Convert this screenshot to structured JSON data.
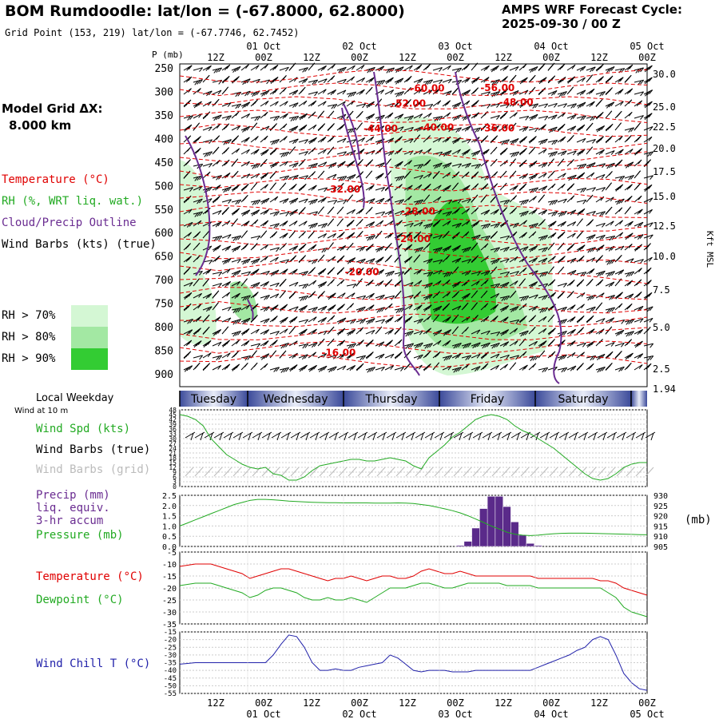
{
  "header": {
    "title": "BOM Rumdoodle:  lat/lon = (-67.8000, 62.8000)",
    "grid_point": "Grid Point (153, 219) lat/lon = (-67.7746, 62.7452)",
    "cycle_label": "AMPS WRF Forecast Cycle:",
    "cycle_value": "2025-09-30 / 00  Z",
    "model_grid_label": "Model Grid ΔX:",
    "model_grid_value": "8.000 km"
  },
  "legend": {
    "temperature": "Temperature (°C)",
    "rh": "RH (%, WRT liq. wat.)",
    "cloud": "Cloud/Precip Outline",
    "wind_barbs": "Wind Barbs (kts) (true)",
    "rh70": "RH > 70%",
    "rh80": "RH > 80%",
    "rh90": "RH > 90%",
    "colors": {
      "temperature": "#e00000",
      "rh": "#22aa22",
      "cloud": "#6a2c91",
      "rh70": "#d4f7d4",
      "rh80": "#a3e8a3",
      "rh90": "#33cc33"
    }
  },
  "time_axis": {
    "hours": [
      "12Z",
      "00Z",
      "12Z",
      "00Z",
      "12Z",
      "00Z",
      "12Z",
      "00Z",
      "12Z",
      "00Z"
    ],
    "dates": [
      "01 Oct",
      "02 Oct",
      "03 Oct",
      "04 Oct",
      "05 Oct"
    ]
  },
  "weekday_strip": {
    "label": "Local Weekday",
    "days": [
      "Tuesday",
      "Wednesday",
      "Thursday",
      "Friday",
      "Saturday"
    ]
  },
  "wind_note": "Wind at 10 m",
  "panel_labels": {
    "wind_spd": "Wind Spd (kts)",
    "wind_barbs_true": "Wind Barbs (true)",
    "wind_barbs_grid": "Wind Barbs (grid)",
    "precip1": "Precip (mm)",
    "precip2": "liq. equiv.",
    "precip3": "3-hr accum",
    "pressure": "Pressure (mb)",
    "pressure_unit": "(mb)",
    "temp": "Temperature (°C)",
    "dew": "Dewpoint (°C)",
    "windchill": "Wind Chill T (°C)",
    "p_unit": "P (mb)",
    "kft": "Kft MSL"
  },
  "chart_data": [
    {
      "type": "heatmap",
      "y_axis": {
        "label": "P (mb)",
        "ticks": [
          250,
          300,
          350,
          400,
          450,
          500,
          550,
          600,
          650,
          700,
          750,
          800,
          850,
          900
        ]
      },
      "right_axis": {
        "label": "Kft MSL",
        "ticks": [
          "30.0",
          "25.0",
          "22.5",
          "20.0",
          "17.5",
          "15.0",
          "12.5",
          "10.0",
          "7.5",
          "5.0",
          "2.5",
          "1.94"
        ]
      },
      "temperature_contours": [
        {
          "value": "-60.00",
          "t": 0.53,
          "p": 300
        },
        {
          "value": "-56.00",
          "t": 0.68,
          "p": 299
        },
        {
          "value": "-52.00",
          "t": 0.49,
          "p": 332
        },
        {
          "value": "-48.00",
          "t": 0.72,
          "p": 330
        },
        {
          "value": "-44.00",
          "t": 0.43,
          "p": 386
        },
        {
          "value": "-40.00",
          "t": 0.55,
          "p": 383
        },
        {
          "value": "-36.00",
          "t": 0.68,
          "p": 385
        },
        {
          "value": "-32.00",
          "t": 0.35,
          "p": 515
        },
        {
          "value": "-28.00",
          "t": 0.51,
          "p": 561
        },
        {
          "value": "-24.00",
          "t": 0.5,
          "p": 620
        },
        {
          "value": "-20.00",
          "t": 0.39,
          "p": 690
        },
        {
          "value": "-16.00",
          "t": 0.34,
          "p": 862
        }
      ]
    },
    {
      "type": "line",
      "yticks": [
        0,
        3,
        6,
        9,
        12,
        15,
        18,
        21,
        24,
        27,
        30,
        33,
        36,
        39,
        42,
        45,
        48
      ],
      "ylim": [
        0,
        48
      ],
      "wind_speed": [
        45,
        44,
        42,
        38,
        30,
        25,
        20,
        17,
        14,
        12,
        11,
        12,
        8,
        7,
        4,
        4,
        6,
        10,
        13,
        14,
        15,
        16,
        17,
        17,
        16,
        16,
        17,
        18,
        17,
        16,
        13,
        11,
        18,
        22,
        26,
        31,
        34,
        38,
        42,
        44,
        45,
        44,
        42,
        38,
        35,
        33,
        30,
        27,
        24,
        20,
        16,
        12,
        8,
        5,
        4,
        5,
        8,
        12,
        14,
        15,
        15
      ]
    },
    {
      "type": "bar",
      "left_yticks": [
        "0.0",
        "0.5",
        "1.0",
        "1.5",
        "2.0",
        "2.5"
      ],
      "right_yticks": [
        905,
        910,
        915,
        920,
        925,
        930
      ],
      "precip_mm": [
        0,
        0,
        0,
        0,
        0,
        0,
        0,
        0,
        0,
        0,
        0,
        0,
        0,
        0,
        0,
        0,
        0,
        0,
        0,
        0,
        0,
        0,
        0,
        0,
        0,
        0,
        0,
        0,
        0,
        0,
        0,
        0,
        0,
        0,
        0,
        0,
        0.05,
        0.25,
        0.9,
        1.85,
        2.45,
        2.45,
        1.95,
        1.2,
        0.55,
        0.15,
        0.05,
        0,
        0,
        0,
        0,
        0,
        0,
        0,
        0,
        0,
        0,
        0,
        0,
        0,
        0
      ],
      "pressure_mb": [
        915,
        916.5,
        918,
        919.5,
        921,
        922.5,
        924,
        925.5,
        926.5,
        927.5,
        928,
        928,
        927.8,
        927.5,
        927.2,
        927,
        926.8,
        926.6,
        926.5,
        926.4,
        926.4,
        926.3,
        926.3,
        926.3,
        926.3,
        926.2,
        926.2,
        926.2,
        926.3,
        926.2,
        926,
        925.5,
        925,
        924.2,
        923.4,
        922.5,
        921.4,
        920,
        918.4,
        916.7,
        915,
        913.5,
        912,
        911,
        910.5,
        910.3,
        910.5,
        910.9,
        911.2,
        911.4,
        911.5,
        911.5,
        911.5,
        911.4,
        911.3,
        911.2,
        911.1,
        911,
        910.9,
        910.8,
        910.7
      ]
    },
    {
      "type": "line",
      "yticks": [
        -5,
        -10,
        -15,
        -20,
        -25,
        -30,
        -35
      ],
      "ylim": [
        -35,
        -5
      ],
      "temperature_c": [
        -11,
        -10.5,
        -10,
        -10,
        -10,
        -11,
        -12,
        -13,
        -14,
        -16,
        -15,
        -14,
        -13,
        -12,
        -12,
        -13,
        -14,
        -15,
        -16,
        -17,
        -16,
        -16,
        -15,
        -16,
        -17,
        -16,
        -15,
        -15,
        -16,
        -16,
        -15,
        -13,
        -12,
        -13,
        -14,
        -14,
        -13,
        -14,
        -15,
        -15,
        -15,
        -15,
        -15,
        -15,
        -15,
        -15,
        -16,
        -16,
        -16,
        -16,
        -16,
        -16,
        -16,
        -16,
        -17,
        -17,
        -18,
        -20,
        -21,
        -22,
        -23
      ],
      "dewpoint_c": [
        -19,
        -18.5,
        -18,
        -18,
        -18,
        -19,
        -20,
        -21,
        -22,
        -24,
        -23,
        -21,
        -20,
        -20,
        -21,
        -22,
        -24,
        -25,
        -25,
        -24,
        -25,
        -25,
        -24,
        -25,
        -26,
        -24,
        -22,
        -20,
        -20,
        -20,
        -19,
        -18,
        -18,
        -19,
        -20,
        -20,
        -19,
        -18,
        -18,
        -18,
        -18,
        -18,
        -19,
        -19,
        -19,
        -19,
        -20,
        -20,
        -20,
        -20,
        -20,
        -20,
        -20,
        -20,
        -20,
        -22,
        -24,
        -28,
        -30,
        -31,
        -32
      ]
    },
    {
      "type": "line",
      "yticks": [
        -15,
        -20,
        -25,
        -30,
        -35,
        -40,
        -45,
        -50,
        -55
      ],
      "ylim": [
        -55,
        -15
      ],
      "wind_chill_c": [
        -36,
        -35.5,
        -35,
        -35,
        -35,
        -35,
        -35,
        -35,
        -35,
        -35,
        -35,
        -35,
        -30,
        -23,
        -17,
        -18,
        -25,
        -35,
        -40,
        -40,
        -39,
        -40,
        -40,
        -38,
        -37,
        -36,
        -35,
        -30,
        -32,
        -36,
        -40,
        -41,
        -40,
        -40,
        -40,
        -41,
        -41,
        -41,
        -40,
        -40,
        -40,
        -40,
        -40,
        -40,
        -40,
        -40,
        -38,
        -36,
        -34,
        -32,
        -30,
        -27,
        -25,
        -20,
        -18,
        -20,
        -30,
        -42,
        -48,
        -52,
        -53
      ]
    }
  ]
}
